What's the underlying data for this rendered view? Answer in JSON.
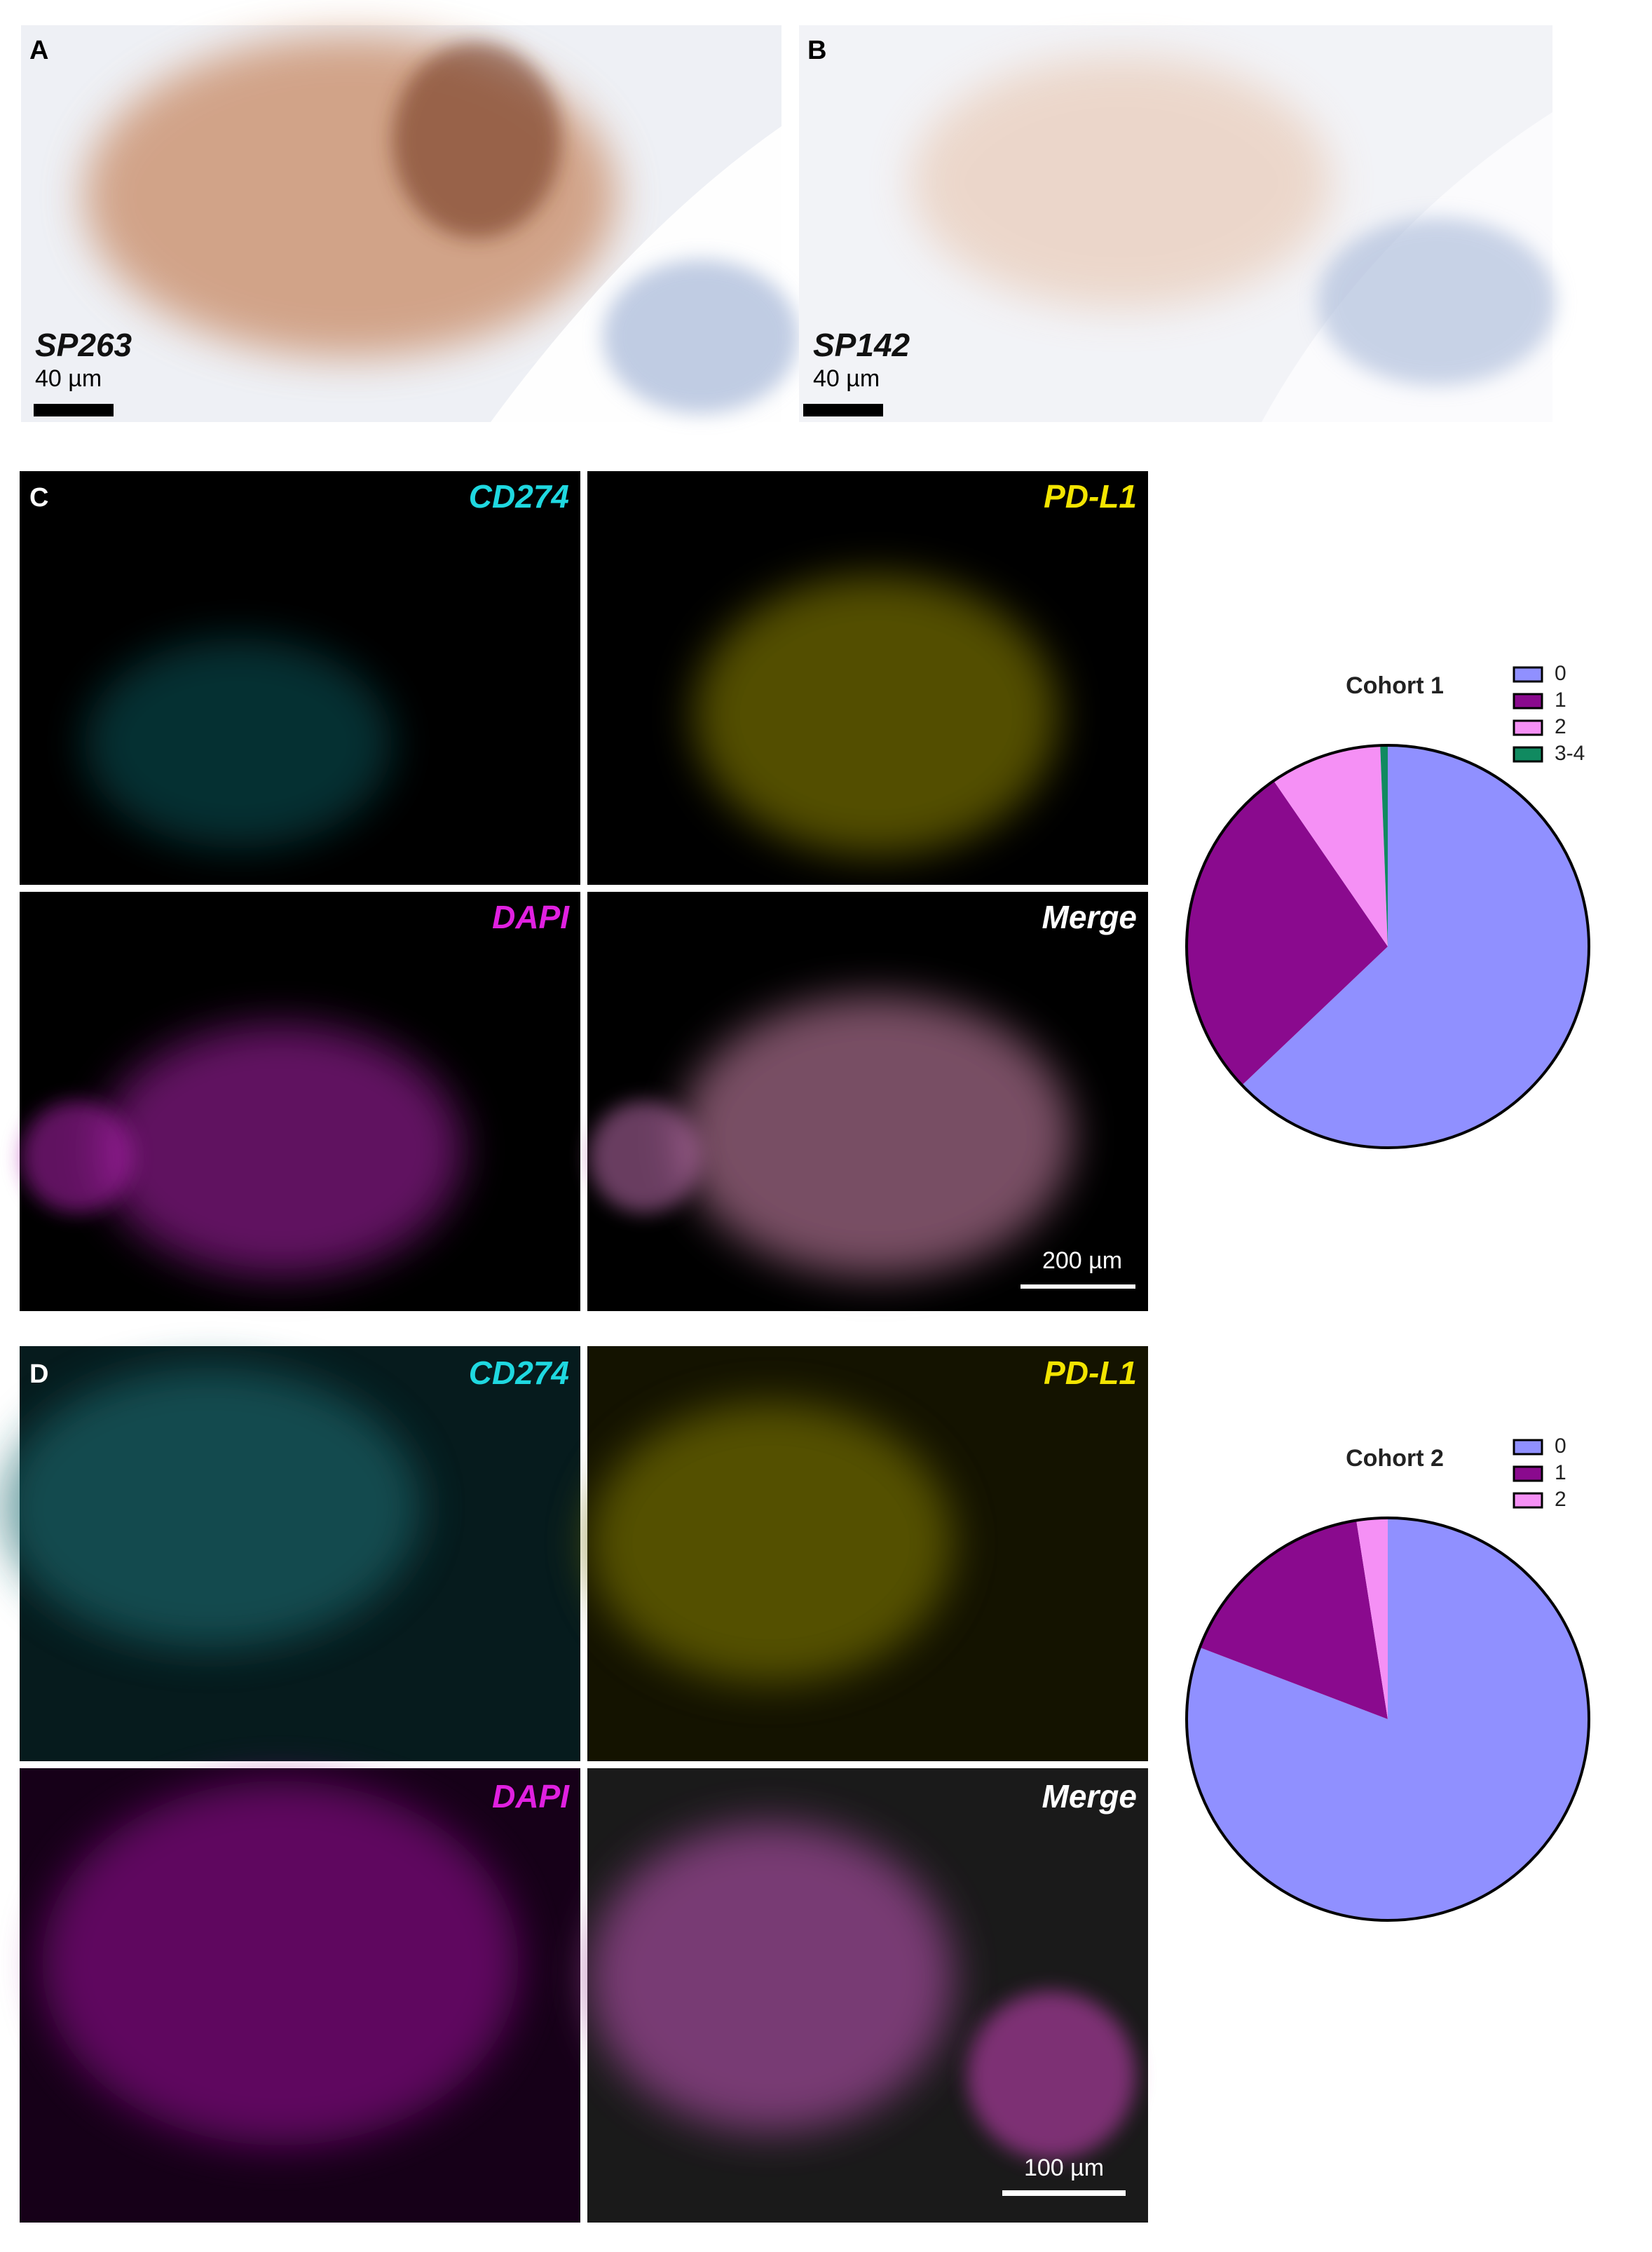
{
  "panels": [
    {
      "label": "A",
      "stain": "SP263",
      "scale_bar": "40 µm"
    },
    {
      "label": "B",
      "stain": "SP142",
      "scale_bar": "40 µm"
    },
    {
      "label": "C",
      "channels": [
        "CD274",
        "PD-L1",
        "DAPI",
        "Merge"
      ],
      "scale_bar": "200 µm"
    },
    {
      "label": "D",
      "channels": [
        "CD274",
        "PD-L1",
        "DAPI",
        "Merge"
      ],
      "scale_bar": "100 µm"
    }
  ],
  "chart_data": [
    {
      "type": "pie",
      "title": "Cohort 1",
      "categories": [
        "0",
        "1",
        "2",
        "3-4"
      ],
      "values": [
        62.9,
        27.5,
        9.0,
        0.6
      ],
      "colors": [
        "#9090ff",
        "#8a0a8e",
        "#f590f5",
        "#108a60"
      ],
      "legend": "top-right"
    },
    {
      "type": "pie",
      "title": "Cohort 2",
      "categories": [
        "0",
        "1",
        "2"
      ],
      "values": [
        80.8,
        16.7,
        2.5
      ],
      "colors": [
        "#9090ff",
        "#8a0a8e",
        "#f590f5"
      ],
      "legend": "top-right"
    }
  ]
}
